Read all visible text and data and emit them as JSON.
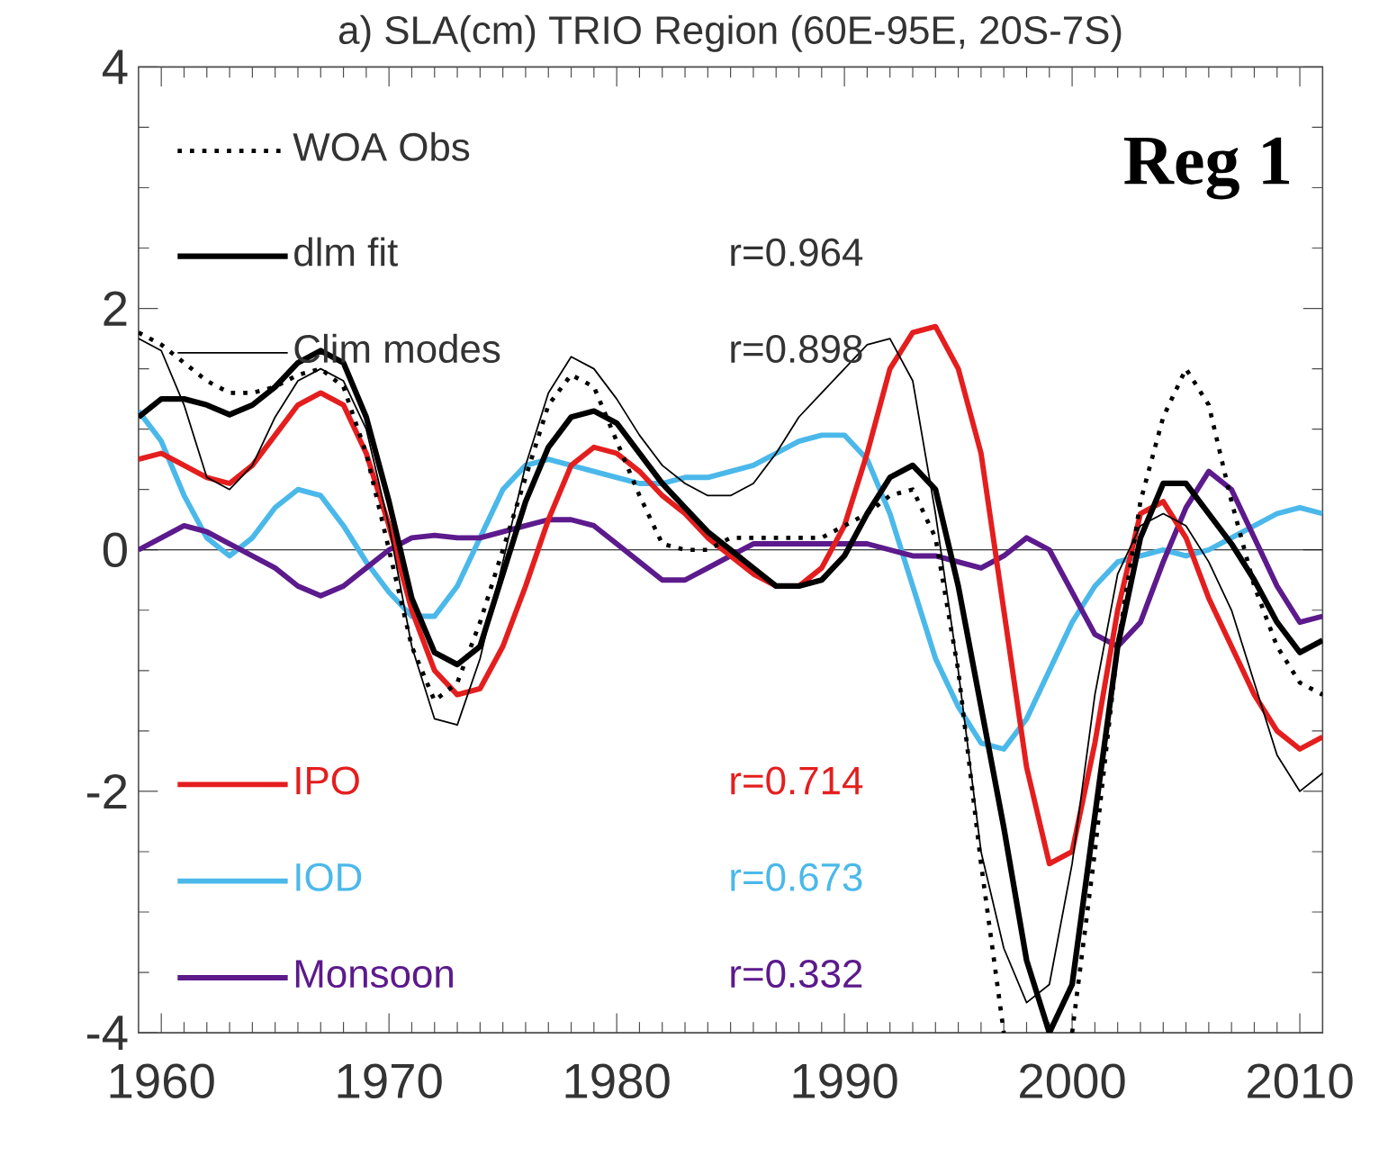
{
  "chart_data": {
    "type": "line",
    "title": "a) SLA(cm) TRIO Region (60E-95E, 20S-7S)",
    "x": [
      1959,
      1960,
      1961,
      1962,
      1963,
      1964,
      1965,
      1966,
      1967,
      1968,
      1969,
      1970,
      1971,
      1972,
      1973,
      1974,
      1975,
      1976,
      1977,
      1978,
      1979,
      1980,
      1981,
      1982,
      1983,
      1984,
      1985,
      1986,
      1987,
      1988,
      1989,
      1990,
      1991,
      1992,
      1993,
      1994,
      1995,
      1996,
      1997,
      1998,
      1999,
      2000,
      2001,
      2002,
      2003,
      2004,
      2005,
      2006,
      2007,
      2008,
      2009,
      2010,
      2011
    ],
    "series": [
      {
        "name": "WOA Obs",
        "color": "#000000",
        "line_style": "dotted",
        "values": [
          1.8,
          1.7,
          1.55,
          1.4,
          1.3,
          1.3,
          1.35,
          1.45,
          1.5,
          1.35,
          0.8,
          0.0,
          -0.8,
          -1.25,
          -1.1,
          -0.6,
          0.0,
          0.6,
          1.2,
          1.45,
          1.35,
          0.9,
          0.45,
          0.05,
          0.0,
          0.0,
          0.1,
          0.1,
          0.1,
          0.1,
          0.1,
          0.2,
          0.3,
          0.45,
          0.5,
          0.1,
          -1.0,
          -2.6,
          -4.0,
          null,
          null,
          -4.0,
          -2.5,
          -0.8,
          0.4,
          1.1,
          1.5,
          1.2,
          0.4,
          -0.3,
          -0.8,
          -1.1,
          -1.2
        ]
      },
      {
        "name": "dlm fit",
        "color": "#000000",
        "values": [
          1.1,
          1.25,
          1.25,
          1.2,
          1.12,
          1.2,
          1.35,
          1.55,
          1.65,
          1.55,
          1.1,
          0.4,
          -0.4,
          -0.85,
          -0.95,
          -0.8,
          -0.2,
          0.4,
          0.85,
          1.1,
          1.15,
          1.05,
          0.8,
          0.55,
          0.35,
          0.15,
          0.0,
          -0.15,
          -0.3,
          -0.3,
          -0.25,
          -0.05,
          0.3,
          0.6,
          0.7,
          0.5,
          -0.3,
          -1.3,
          -2.3,
          -3.4,
          -4.0,
          -3.6,
          -2.2,
          -0.8,
          0.1,
          0.55,
          0.55,
          0.3,
          0.05,
          -0.25,
          -0.6,
          -0.85,
          -0.75
        ]
      },
      {
        "name": "Clim modes",
        "color": "#000000",
        "values": [
          1.75,
          1.65,
          1.2,
          0.6,
          0.5,
          0.7,
          1.1,
          1.4,
          1.5,
          1.4,
          1.0,
          0.2,
          -0.8,
          -1.4,
          -1.45,
          -0.9,
          -0.1,
          0.7,
          1.3,
          1.6,
          1.5,
          1.25,
          0.95,
          0.7,
          0.55,
          0.45,
          0.45,
          0.55,
          0.8,
          1.1,
          1.3,
          1.5,
          1.7,
          1.75,
          1.4,
          0.3,
          -1.0,
          -2.5,
          -3.3,
          -3.75,
          -3.6,
          -2.6,
          -1.2,
          -0.2,
          0.2,
          0.3,
          0.2,
          -0.1,
          -0.5,
          -1.1,
          -1.7,
          -2.0,
          -1.85
        ]
      },
      {
        "name": "IPO",
        "color": "#e41e1e",
        "values": [
          0.75,
          0.8,
          0.7,
          0.6,
          0.55,
          0.7,
          0.95,
          1.2,
          1.3,
          1.2,
          0.8,
          0.2,
          -0.5,
          -1.0,
          -1.2,
          -1.15,
          -0.8,
          -0.3,
          0.25,
          0.7,
          0.85,
          0.8,
          0.65,
          0.45,
          0.3,
          0.1,
          -0.05,
          -0.2,
          -0.3,
          -0.3,
          -0.15,
          0.2,
          0.8,
          1.5,
          1.8,
          1.85,
          1.5,
          0.8,
          -0.5,
          -1.8,
          -2.6,
          -2.5,
          -1.6,
          -0.5,
          0.3,
          0.4,
          0.1,
          -0.4,
          -0.8,
          -1.2,
          -1.5,
          -1.65,
          -1.55
        ]
      },
      {
        "name": "IOD",
        "color": "#4bb8ea",
        "values": [
          1.15,
          0.9,
          0.45,
          0.1,
          -0.05,
          0.1,
          0.35,
          0.5,
          0.45,
          0.2,
          -0.1,
          -0.35,
          -0.55,
          -0.55,
          -0.3,
          0.1,
          0.5,
          0.7,
          0.75,
          0.7,
          0.65,
          0.6,
          0.55,
          0.55,
          0.6,
          0.6,
          0.65,
          0.7,
          0.8,
          0.9,
          0.95,
          0.95,
          0.75,
          0.3,
          -0.3,
          -0.9,
          -1.3,
          -1.6,
          -1.65,
          -1.4,
          -1.0,
          -0.6,
          -0.3,
          -0.1,
          -0.05,
          0.0,
          -0.05,
          0.0,
          0.1,
          0.2,
          0.3,
          0.35,
          0.3
        ]
      },
      {
        "name": "Monsoon",
        "color": "#5c1a8c",
        "values": [
          0.0,
          0.1,
          0.2,
          0.15,
          0.05,
          -0.05,
          -0.15,
          -0.3,
          -0.38,
          -0.3,
          -0.15,
          0.0,
          0.1,
          0.12,
          0.1,
          0.1,
          0.15,
          0.2,
          0.25,
          0.25,
          0.2,
          0.05,
          -0.1,
          -0.25,
          -0.25,
          -0.15,
          -0.05,
          0.05,
          0.05,
          0.05,
          0.05,
          0.05,
          0.05,
          0.0,
          -0.05,
          -0.05,
          -0.1,
          -0.15,
          -0.05,
          0.1,
          0.0,
          -0.35,
          -0.7,
          -0.8,
          -0.6,
          -0.1,
          0.35,
          0.65,
          0.5,
          0.1,
          -0.3,
          -0.6,
          -0.55
        ]
      }
    ],
    "annotations": [
      "r=0.964",
      "r=0.898",
      "r=0.714",
      "r=0.673",
      "r=0.332",
      "Reg 1"
    ],
    "xlim": [
      1959,
      2011
    ],
    "ylim": [
      -4,
      4
    ],
    "xticks": [
      1960,
      1970,
      1980,
      1990,
      2000,
      2010
    ],
    "yticks": [
      -4,
      -2,
      0,
      2,
      4
    ],
    "ref_lines": [
      {
        "axis": "y",
        "value": 0,
        "color": "#000000"
      }
    ],
    "legend": "left",
    "grid": false
  }
}
